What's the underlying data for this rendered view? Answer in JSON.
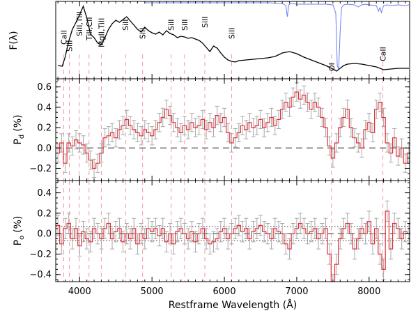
{
  "chart_data": {
    "type": "line",
    "xlabel": "Restframe Wavelength (Å)",
    "xlim": [
      3670,
      8560
    ],
    "x_ticks": [
      4000,
      5000,
      6000,
      7000,
      8000
    ],
    "x_tick_labels": [
      "4000",
      "5000",
      "6000",
      "7000",
      "8000"
    ],
    "panels": [
      {
        "name": "flux",
        "ylabel": "F(λ)",
        "series": [
          {
            "name": "flux spectrum",
            "color": "#000000",
            "x": [
              3700,
              3760,
              3800,
              3850,
              3900,
              3950,
              4000,
              4050,
              4100,
              4150,
              4200,
              4250,
              4300,
              4350,
              4400,
              4450,
              4500,
              4550,
              4600,
              4650,
              4700,
              4750,
              4800,
              4850,
              4900,
              4950,
              5000,
              5050,
              5100,
              5150,
              5200,
              5250,
              5300,
              5350,
              5400,
              5450,
              5500,
              5550,
              5600,
              5650,
              5700,
              5750,
              5800,
              5850,
              5900,
              5950,
              6000,
              6050,
              6100,
              6150,
              6200,
              6300,
              6400,
              6500,
              6600,
              6700,
              6800,
              6900,
              7000,
              7100,
              7200,
              7300,
              7400,
              7500,
              7550,
              7600,
              7650,
              7700,
              7800,
              7900,
              8000,
              8100,
              8200,
              8300,
              8400,
              8500,
              8550
            ],
            "y": [
              0.1,
              0.09,
              0.22,
              0.45,
              0.62,
              0.72,
              0.83,
              0.95,
              0.78,
              0.55,
              0.5,
              0.42,
              0.4,
              0.5,
              0.62,
              0.7,
              0.75,
              0.72,
              0.76,
              0.8,
              0.74,
              0.68,
              0.62,
              0.58,
              0.65,
              0.6,
              0.57,
              0.55,
              0.58,
              0.54,
              0.6,
              0.56,
              0.54,
              0.5,
              0.52,
              0.51,
              0.49,
              0.5,
              0.48,
              0.46,
              0.42,
              0.36,
              0.3,
              0.38,
              0.35,
              0.28,
              0.22,
              0.18,
              0.16,
              0.15,
              0.17,
              0.18,
              0.19,
              0.2,
              0.21,
              0.23,
              0.28,
              0.3,
              0.27,
              0.22,
              0.18,
              0.14,
              0.1,
              0.05,
              0.02,
              0.06,
              0.1,
              0.12,
              0.13,
              0.12,
              0.1,
              0.08,
              0.04,
              0.05,
              0.06,
              0.06,
              0.06
            ]
          },
          {
            "name": "telluric",
            "color": "#6a7ff0",
            "x": [
              4900,
              5200,
              5600,
              6000,
              6300,
              6600,
              6800,
              6850,
              6870,
              6890,
              6920,
              7000,
              7200,
              7400,
              7500,
              7540,
              7560,
              7580,
              7600,
              7620,
              7650,
              7700,
              7800,
              7850,
              7900,
              7950,
              8000,
              8100,
              8130,
              8150,
              8170,
              8200,
              8250,
              8300,
              8400,
              8500,
              8550
            ],
            "y": [
              1.0,
              1.0,
              1.0,
              1.0,
              1.0,
              1.0,
              0.99,
              0.96,
              0.8,
              0.97,
              0.99,
              0.98,
              0.98,
              0.98,
              0.97,
              0.85,
              0.1,
              0.05,
              0.6,
              0.93,
              0.97,
              0.98,
              0.97,
              0.94,
              0.97,
              0.98,
              0.97,
              0.96,
              0.88,
              0.93,
              0.86,
              0.96,
              0.97,
              0.96,
              0.97,
              0.96,
              0.97
            ]
          }
        ],
        "lines": [
          {
            "label": "CaII",
            "wavelength": 3780
          },
          {
            "label": "SiII",
            "wavelength": 3858
          },
          {
            "label": "SiII,TiII",
            "wavelength": 3995
          },
          {
            "label": "TiII,CII",
            "wavelength": 4130
          },
          {
            "label": "MgII,TiII",
            "wavelength": 4300
          },
          {
            "label": "SiII",
            "wavelength": 4635
          },
          {
            "label": "SiII",
            "wavelength": 4870
          },
          {
            "label": "SiII",
            "wavelength": 5265
          },
          {
            "label": "SiII",
            "wavelength": 5450
          },
          {
            "label": "SiII",
            "wavelength": 5730
          },
          {
            "label": "SiII",
            "wavelength": 6100
          },
          {
            "label": "OI",
            "wavelength": 7480
          },
          {
            "label": "CaII",
            "wavelength": 8190
          }
        ]
      },
      {
        "name": "pd",
        "ylabel": "P_d (%)",
        "ylabel_main": "P",
        "ylabel_sub": "d",
        "ylabel_unit": "(%)",
        "ylim": [
          -0.32,
          0.68
        ],
        "y_ticks": [
          -0.2,
          0.0,
          0.2,
          0.4,
          0.6
        ],
        "y_tick_labels": [
          "−0.2",
          "0.0",
          "0.2",
          "0.4",
          "0.6"
        ],
        "reference_line": 0.0,
        "series": [
          {
            "name": "P_d",
            "color": "#e0303a",
            "x": [
              3700,
              3750,
              3800,
              3850,
              3900,
              3950,
              4000,
              4050,
              4100,
              4150,
              4200,
              4250,
              4300,
              4350,
              4400,
              4450,
              4500,
              4550,
              4600,
              4650,
              4700,
              4750,
              4800,
              4850,
              4900,
              4950,
              5000,
              5050,
              5100,
              5150,
              5200,
              5250,
              5300,
              5350,
              5400,
              5450,
              5500,
              5550,
              5600,
              5650,
              5700,
              5750,
              5800,
              5850,
              5900,
              5950,
              6000,
              6050,
              6100,
              6150,
              6200,
              6250,
              6300,
              6350,
              6400,
              6450,
              6500,
              6550,
              6600,
              6650,
              6700,
              6750,
              6800,
              6850,
              6900,
              6950,
              7000,
              7050,
              7100,
              7150,
              7200,
              7250,
              7300,
              7350,
              7400,
              7450,
              7500,
              7550,
              7600,
              7650,
              7700,
              7750,
              7800,
              7850,
              7900,
              7950,
              8000,
              8050,
              8100,
              8150,
              8200,
              8250,
              8300,
              8350,
              8400,
              8450,
              8500,
              8550
            ],
            "y": [
              -0.05,
              0.05,
              -0.15,
              0.05,
              0.02,
              0.08,
              0.05,
              0.03,
              -0.05,
              -0.12,
              -0.2,
              -0.15,
              -0.05,
              0.1,
              0.12,
              0.15,
              0.1,
              0.18,
              0.22,
              0.28,
              0.22,
              0.18,
              0.15,
              0.12,
              0.18,
              0.15,
              0.12,
              0.18,
              0.25,
              0.3,
              0.38,
              0.32,
              0.25,
              0.2,
              0.15,
              0.22,
              0.18,
              0.25,
              0.2,
              0.22,
              0.28,
              0.18,
              0.25,
              0.2,
              0.32,
              0.25,
              0.3,
              0.15,
              0.05,
              0.1,
              0.15,
              0.22,
              0.18,
              0.25,
              0.2,
              0.22,
              0.28,
              0.2,
              0.25,
              0.3,
              0.22,
              0.28,
              0.38,
              0.45,
              0.4,
              0.5,
              0.55,
              0.48,
              0.52,
              0.45,
              0.38,
              0.45,
              0.4,
              0.3,
              0.2,
              0.02,
              -0.1,
              0.05,
              0.2,
              0.3,
              0.38,
              0.2,
              0.1,
              0.05,
              0.0,
              0.18,
              0.25,
              0.15,
              0.38,
              0.45,
              0.3,
              0.05,
              -0.05,
              0.1,
              -0.08,
              0.0,
              -0.15,
              -0.05
            ],
            "err": 0.09
          }
        ]
      },
      {
        "name": "po",
        "ylabel": "P_o (%)",
        "ylabel_main": "P",
        "ylabel_sub": "o",
        "ylabel_unit": "(%)",
        "ylim": [
          -0.47,
          0.52
        ],
        "y_ticks": [
          -0.4,
          -0.2,
          0.0,
          0.2,
          0.4
        ],
        "y_tick_labels": [
          "−0.4",
          "−0.2",
          "0.0",
          "0.2",
          "0.4"
        ],
        "reference_line": 0.0,
        "band_lines": [
          0.07,
          -0.07
        ],
        "series": [
          {
            "name": "P_o",
            "color": "#e0303a",
            "x": [
              3700,
              3750,
              3800,
              3850,
              3900,
              3950,
              4000,
              4050,
              4100,
              4150,
              4200,
              4250,
              4300,
              4350,
              4400,
              4450,
              4500,
              4550,
              4600,
              4650,
              4700,
              4750,
              4800,
              4850,
              4900,
              4950,
              5000,
              5050,
              5100,
              5150,
              5200,
              5250,
              5300,
              5350,
              5400,
              5450,
              5500,
              5550,
              5600,
              5650,
              5700,
              5750,
              5800,
              5850,
              5900,
              5950,
              6000,
              6050,
              6100,
              6150,
              6200,
              6250,
              6300,
              6350,
              6400,
              6450,
              6500,
              6550,
              6600,
              6650,
              6700,
              6750,
              6800,
              6850,
              6900,
              6950,
              7000,
              7050,
              7100,
              7150,
              7200,
              7250,
              7300,
              7350,
              7400,
              7450,
              7500,
              7550,
              7600,
              7650,
              7700,
              7750,
              7800,
              7850,
              7900,
              7950,
              8000,
              8050,
              8100,
              8150,
              8200,
              8250,
              8300,
              8350,
              8400,
              8450,
              8500,
              8550
            ],
            "y": [
              0.08,
              -0.1,
              0.05,
              0.1,
              -0.05,
              0.05,
              -0.12,
              0.02,
              -0.05,
              -0.08,
              0.05,
              0.0,
              -0.05,
              0.05,
              0.1,
              -0.05,
              0.02,
              0.05,
              -0.08,
              0.0,
              -0.05,
              0.05,
              -0.1,
              0.0,
              -0.05,
              0.05,
              0.02,
              0.05,
              -0.02,
              0.05,
              -0.08,
              0.0,
              -0.1,
              0.02,
              0.05,
              0.0,
              -0.05,
              0.02,
              -0.08,
              0.0,
              0.05,
              -0.05,
              -0.1,
              -0.08,
              -0.05,
              0.02,
              0.05,
              -0.05,
              0.0,
              0.05,
              0.08,
              0.02,
              0.05,
              -0.05,
              0.02,
              0.05,
              0.08,
              0.02,
              0.0,
              -0.05,
              0.05,
              0.02,
              0.0,
              -0.1,
              -0.15,
              0.0,
              0.05,
              0.1,
              0.05,
              0.0,
              0.02,
              0.05,
              -0.05,
              0.0,
              0.05,
              -0.2,
              -0.5,
              -0.3,
              -0.05,
              0.05,
              0.1,
              0.0,
              -0.15,
              -0.05,
              0.05,
              0.0,
              0.12,
              -0.1,
              0.05,
              -0.2,
              -0.35,
              0.22,
              -0.15,
              0.1,
              0.05,
              -0.05,
              0.02,
              0.0
            ],
            "err": 0.1
          }
        ]
      }
    ]
  }
}
